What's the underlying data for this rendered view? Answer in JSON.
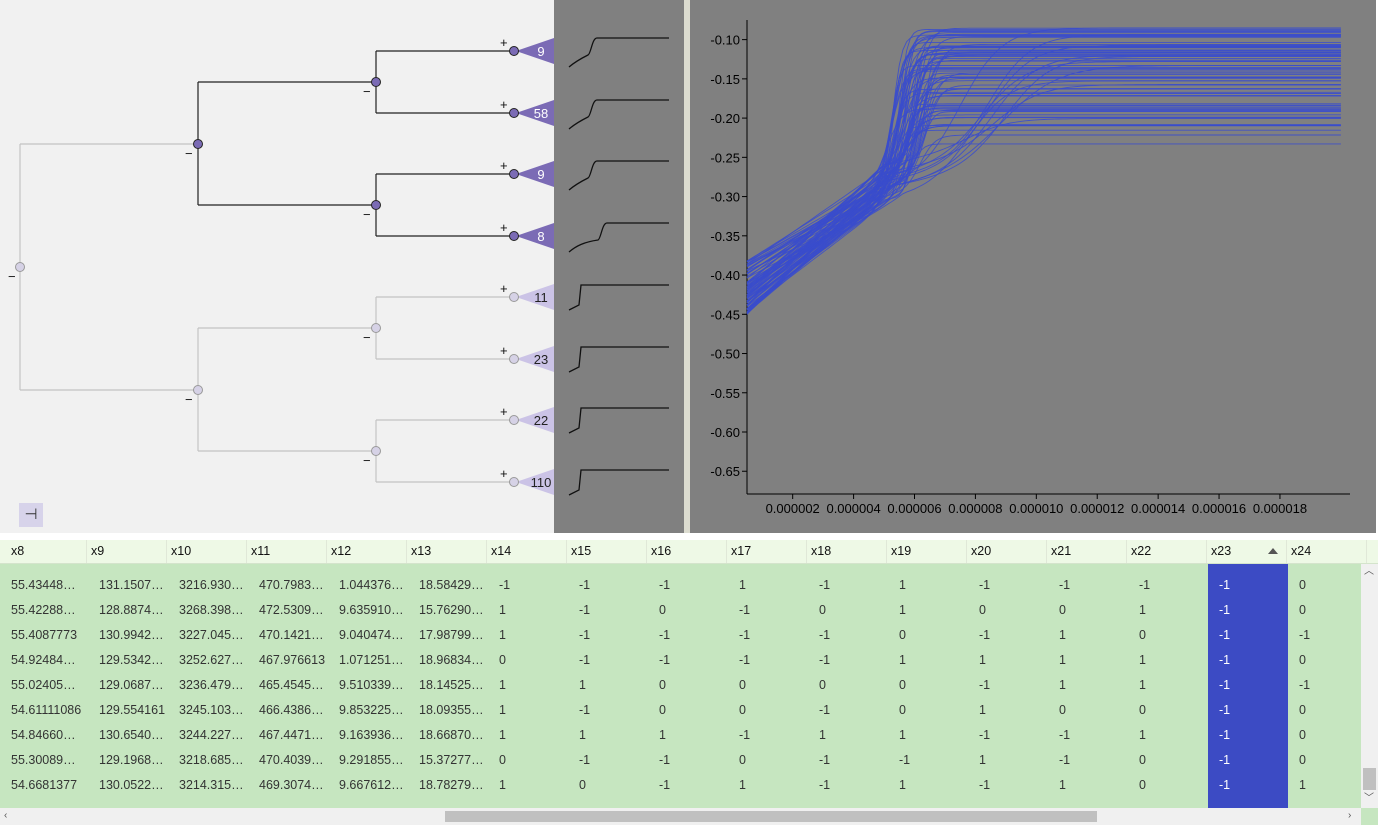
{
  "tree": {
    "leaves": [
      {
        "count": "9",
        "active": true
      },
      {
        "count": "58",
        "active": true
      },
      {
        "count": "9",
        "active": true
      },
      {
        "count": "8",
        "active": true
      },
      {
        "count": "11",
        "active": false
      },
      {
        "count": "23",
        "active": false
      },
      {
        "count": "22",
        "active": false
      },
      {
        "count": "110",
        "active": false
      }
    ],
    "expand_symbol": "+",
    "collapse_symbol": "−",
    "collapse_button": "⊣"
  },
  "plot": {
    "ytick_labels": [
      "-0.10",
      "-0.15",
      "-0.20",
      "-0.25",
      "-0.30",
      "-0.35",
      "-0.40",
      "-0.45",
      "-0.50",
      "-0.55",
      "-0.60",
      "-0.65"
    ],
    "xtick_labels": [
      "0.000002",
      "0.000004",
      "0.000006",
      "0.000008",
      "0.000010",
      "0.000012",
      "0.000014",
      "0.000016",
      "0.000018"
    ],
    "line_color": "#3a4ccc"
  },
  "chart_data": {
    "type": "line",
    "xlabel": "",
    "ylabel": "",
    "xlim": [
      5e-07,
      2.03e-05
    ],
    "ylim": [
      -0.679,
      -0.075
    ],
    "series_count": 84,
    "note_y_start_range": [
      -0.45,
      -0.38
    ],
    "note_y_plateau_range": [
      -0.24,
      -0.085
    ]
  },
  "table": {
    "columns": [
      "x8",
      "x9",
      "x10",
      "x11",
      "x12",
      "x13",
      "x14",
      "x15",
      "x16",
      "x17",
      "x18",
      "x19",
      "x20",
      "x21",
      "x22",
      "x23",
      "x24",
      ""
    ],
    "sorted_column": "x23",
    "rows": [
      [
        "55.43448…",
        "131.1507…",
        "3216.930…",
        "470.7983…",
        "1.044376…",
        "18.58429…",
        "-1",
        "-1",
        "-1",
        "1",
        "-1",
        "1",
        "-1",
        "-1",
        "-1",
        "-1",
        "0"
      ],
      [
        "55.42288…",
        "128.8874…",
        "3268.398…",
        "472.5309…",
        "9.635910…",
        "15.76290…",
        "1",
        "-1",
        "0",
        "-1",
        "0",
        "1",
        "0",
        "0",
        "1",
        "-1",
        "0"
      ],
      [
        "55.4087773",
        "130.9942…",
        "3227.045…",
        "470.1421…",
        "9.040474…",
        "17.98799…",
        "1",
        "-1",
        "-1",
        "-1",
        "-1",
        "0",
        "-1",
        "1",
        "0",
        "-1",
        "-1"
      ],
      [
        "54.92484…",
        "129.5342…",
        "3252.627…",
        "467.976613",
        "1.071251…",
        "18.96834…",
        "0",
        "-1",
        "-1",
        "-1",
        "-1",
        "1",
        "1",
        "1",
        "1",
        "-1",
        "0"
      ],
      [
        "55.02405…",
        "129.0687…",
        "3236.479…",
        "465.4545…",
        "9.510339…",
        "18.14525…",
        "1",
        "1",
        "0",
        "0",
        "0",
        "0",
        "-1",
        "1",
        "1",
        "-1",
        "-1"
      ],
      [
        "54.61111086",
        "129.554161",
        "3245.103…",
        "466.4386…",
        "9.853225…",
        "18.09355…",
        "1",
        "-1",
        "0",
        "0",
        "-1",
        "0",
        "1",
        "0",
        "0",
        "-1",
        "0"
      ],
      [
        "54.84660…",
        "130.6540…",
        "3244.227…",
        "467.4471…",
        "9.163936…",
        "18.66870…",
        "1",
        "1",
        "1",
        "-1",
        "1",
        "1",
        "-1",
        "-1",
        "1",
        "-1",
        "0"
      ],
      [
        "55.30089…",
        "129.1968…",
        "3218.685…",
        "470.4039…",
        "9.291855…",
        "15.37277…",
        "0",
        "-1",
        "-1",
        "0",
        "-1",
        "-1",
        "1",
        "-1",
        "0",
        "-1",
        "0"
      ],
      [
        "54.6681377",
        "130.0522…",
        "3214.315…",
        "469.3074…",
        "9.667612…",
        "18.78279…",
        "1",
        "0",
        "-1",
        "1",
        "-1",
        "1",
        "-1",
        "1",
        "0",
        "-1",
        "1"
      ]
    ]
  },
  "colors": {
    "selected_column": "#3c4bc4",
    "table_bg": "#c6e6c0",
    "cluster_active": "#7b6bb5",
    "cluster_inactive": "#c9c0e4"
  }
}
